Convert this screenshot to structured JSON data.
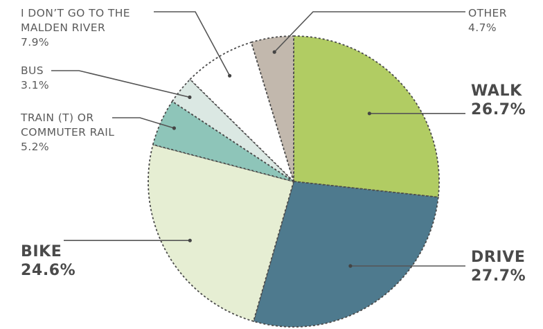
{
  "chart_data": {
    "type": "pie",
    "slices": [
      {
        "label": "WALK",
        "value": 26.7,
        "value_label": "26.7%",
        "color": "#b1cc63"
      },
      {
        "label": "DRIVE",
        "value": 27.7,
        "value_label": "27.7%",
        "color": "#4e7a8e"
      },
      {
        "label": "BIKE",
        "value": 24.6,
        "value_label": "24.6%",
        "color": "#e6eed3"
      },
      {
        "label": "TRAIN (T) OR COMMUTER RAIL",
        "value": 5.2,
        "value_label": "5.2%",
        "color": "#8ec5b9"
      },
      {
        "label": "BUS",
        "value": 3.1,
        "value_label": "3.1%",
        "color": "#dbe8e3"
      },
      {
        "label": "I DON'T GO TO THE MALDEN RIVER",
        "value": 7.9,
        "value_label": "7.9%",
        "color": "#ffffff"
      },
      {
        "label": "OTHER",
        "value": 4.7,
        "value_label": "4.7%",
        "color": "#c2b8ad"
      }
    ],
    "legend": "callout labels around pie"
  },
  "labels": {
    "walk": {
      "line1": "WALK",
      "line2": "26.7%"
    },
    "drive": {
      "line1": "DRIVE",
      "line2": "27.7%"
    },
    "bike": {
      "line1": "BIKE",
      "line2": "24.6%"
    },
    "train": {
      "line1": "TRAIN (T) OR",
      "line2": "COMMUTER RAIL",
      "line3": "5.2%"
    },
    "bus": {
      "line1": "BUS",
      "line2": "3.1%"
    },
    "dont": {
      "line1": "I DON’T GO TO THE",
      "line2": "MALDEN RIVER",
      "line3": "7.9%"
    },
    "other": {
      "line1": "OTHER",
      "line2": "4.7%"
    }
  }
}
